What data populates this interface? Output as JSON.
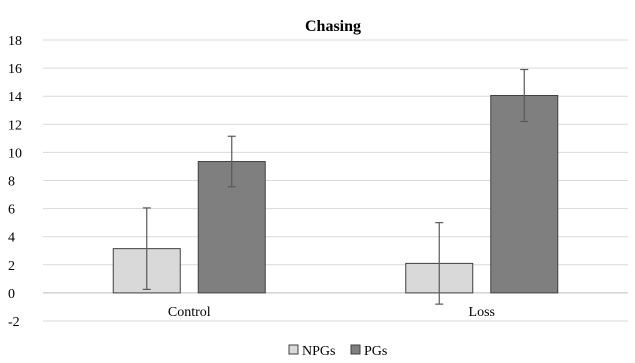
{
  "chart_data": {
    "type": "bar",
    "title": "Chasing",
    "categories": [
      "Control",
      "Loss"
    ],
    "series": [
      {
        "name": "NPGs",
        "values": [
          3.15,
          2.1
        ],
        "error": [
          2.9,
          2.9
        ],
        "color": "#d9d9d9",
        "edge": "#404040"
      },
      {
        "name": "PGs",
        "values": [
          9.35,
          14.05
        ],
        "error": [
          1.8,
          1.85
        ],
        "color": "#7f7f7f",
        "edge": "#404040"
      }
    ],
    "ylim": [
      -2,
      18
    ],
    "yticks": [
      18,
      16,
      14,
      12,
      10,
      8,
      6,
      4,
      2,
      0,
      -2
    ],
    "grid": true,
    "legend": "bottom-center"
  }
}
